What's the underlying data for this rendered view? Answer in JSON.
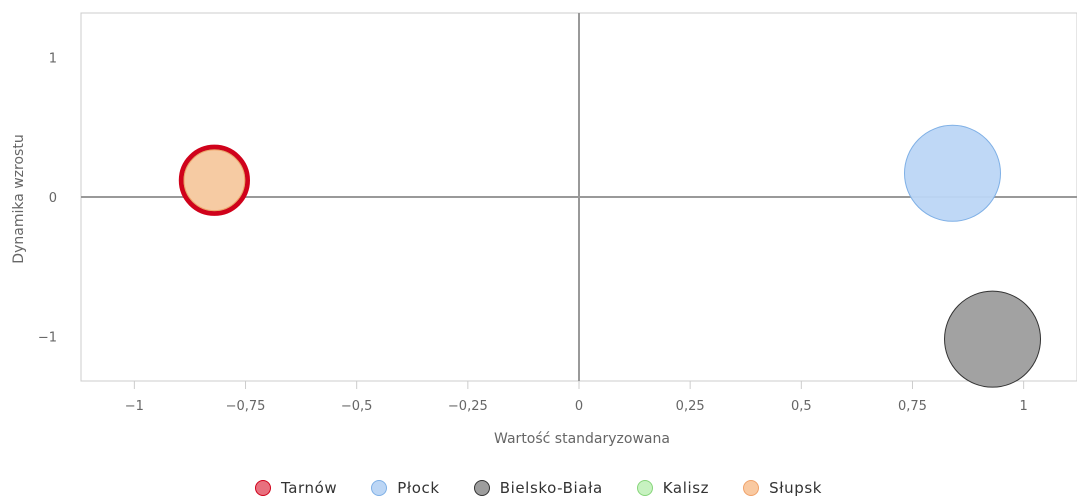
{
  "chart_data": {
    "type": "scatter",
    "variant": "bubble",
    "xlabel": "Wartość standaryzowana",
    "ylabel": "Dynamika wzrostu",
    "xlim": [
      -1.12,
      1.12
    ],
    "ylim": [
      -1.32,
      1.32
    ],
    "x_ticks": [
      {
        "value": -1,
        "label": "−1"
      },
      {
        "value": -0.75,
        "label": "−0,75"
      },
      {
        "value": -0.5,
        "label": "−0,5"
      },
      {
        "value": -0.25,
        "label": "−0,25"
      },
      {
        "value": 0,
        "label": "0"
      },
      {
        "value": 0.25,
        "label": "0,25"
      },
      {
        "value": 0.5,
        "label": "0,5"
      },
      {
        "value": 0.75,
        "label": "0,75"
      },
      {
        "value": 1,
        "label": "1"
      }
    ],
    "y_ticks": [
      {
        "value": 1,
        "label": "1"
      },
      {
        "value": 0,
        "label": "0"
      },
      {
        "value": -1,
        "label": "−1"
      }
    ],
    "grid": false,
    "zero_lines": true,
    "legend_position": "bottom",
    "series": [
      {
        "name": "Tarnów",
        "x": -0.82,
        "y": 0.12,
        "size": 0.55,
        "fill": "#e8707e",
        "stroke": "#d0021b",
        "highlighted": true
      },
      {
        "name": "Płock",
        "x": 0.84,
        "y": 0.17,
        "size": 1.0,
        "fill": "#bcd6f5",
        "stroke": "#7fb0e6"
      },
      {
        "name": "Bielsko-Biała",
        "x": 0.93,
        "y": -1.02,
        "size": 1.0,
        "fill": "#9d9d9d",
        "stroke": "#333333"
      },
      {
        "name": "Kalisz",
        "x": -0.82,
        "y": 0.12,
        "size": 0.4,
        "fill": "#c7f2c0",
        "stroke": "#86d57a"
      },
      {
        "name": "Słupsk",
        "x": -0.82,
        "y": 0.12,
        "size": 0.4,
        "fill": "#f9c9a1",
        "stroke": "#f0a26a"
      }
    ]
  }
}
